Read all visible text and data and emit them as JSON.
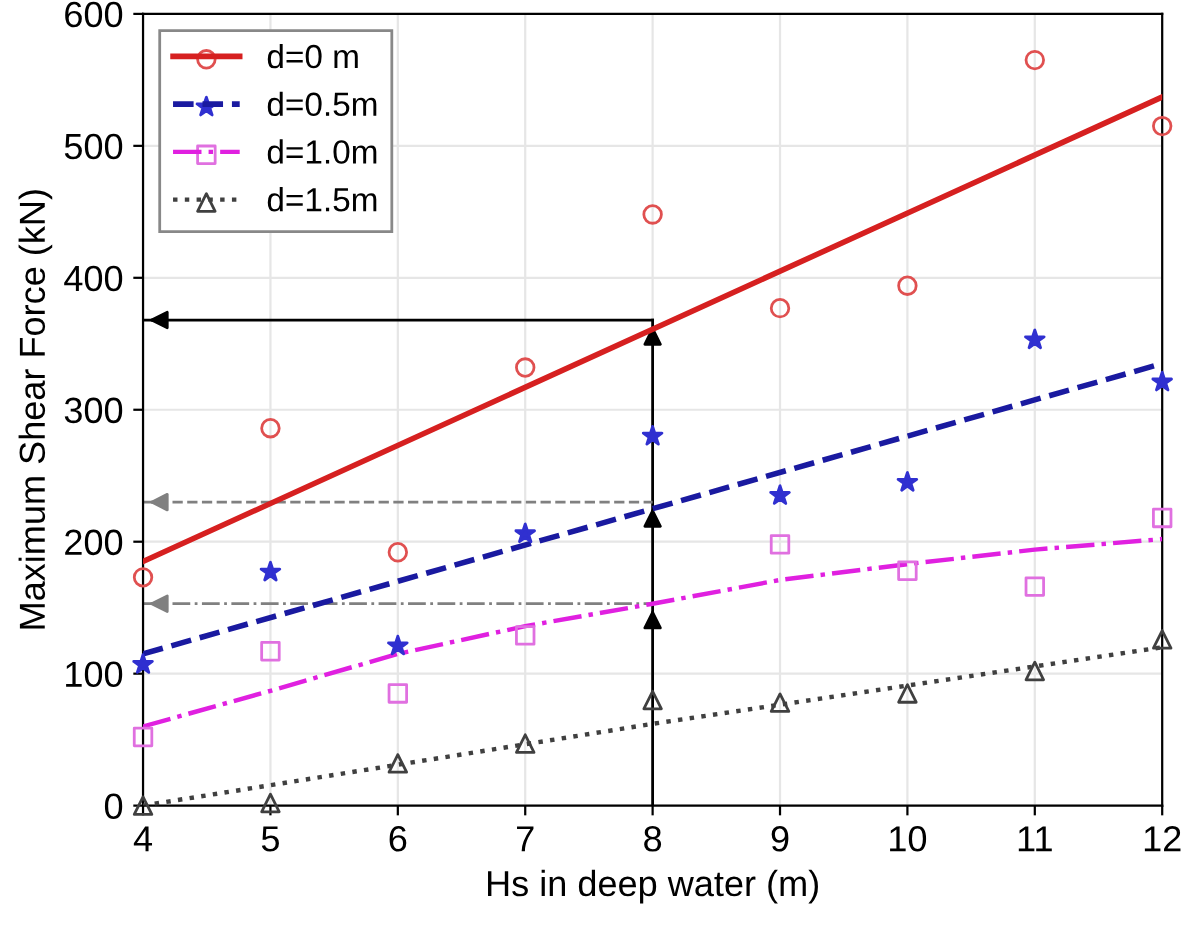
{
  "chart_data": {
    "type": "scatter",
    "xlabel": "Hs in deep water (m)",
    "ylabel": "Maximum Shear Force (kN)",
    "x": [
      4,
      5,
      6,
      7,
      8,
      9,
      10,
      11,
      12
    ],
    "series": [
      {
        "name": "d=0 m",
        "color": "#e05050",
        "marker": "circle",
        "values": [
          173,
          286,
          192,
          332,
          448,
          377,
          394,
          565,
          515
        ]
      },
      {
        "name": "d=0.5m",
        "color": "#3030d0",
        "marker": "star",
        "values": [
          107,
          177,
          121,
          206,
          280,
          235,
          245,
          353,
          321
        ]
      },
      {
        "name": "d=1.0m",
        "color": "#e070e0",
        "marker": "square",
        "values": [
          52,
          117,
          85,
          129,
          null,
          198,
          178,
          166,
          218
        ]
      },
      {
        "name": "d=1.5m",
        "color": "#404040",
        "marker": "triangle",
        "values": [
          0,
          2,
          32,
          47,
          80,
          78,
          85,
          102,
          126
        ]
      },
      {
        "type": "line",
        "color": "#d62020",
        "line_style": "solid",
        "x": [
          4,
          12
        ],
        "values": [
          185,
          537
        ]
      },
      {
        "type": "line",
        "color": "#1a1aa0",
        "line_style": "dashed",
        "x": [
          4,
          12
        ],
        "values": [
          115,
          335
        ]
      },
      {
        "type": "line",
        "color": "#e020e0",
        "line_style": "dashdot",
        "x": [
          4,
          5,
          6,
          7,
          8,
          9,
          10,
          11,
          12
        ],
        "values": [
          60,
          87,
          115,
          136,
          153,
          171,
          183,
          194,
          202
        ]
      },
      {
        "type": "line",
        "color": "#404040",
        "line_style": "dotted",
        "x": [
          4,
          8,
          12
        ],
        "values": [
          0,
          62,
          120
        ]
      }
    ],
    "ref_lines": [
      {
        "axis": "x",
        "value": 8,
        "color": "#000000",
        "line_style": "solid"
      },
      {
        "axis": "y",
        "value": 368,
        "color": "#000000",
        "line_style": "solid"
      },
      {
        "axis": "y",
        "value": 230,
        "color": "#808080",
        "line_style": "dashed"
      },
      {
        "axis": "y",
        "value": 153,
        "color": "#808080",
        "line_style": "dashdot"
      }
    ],
    "xlim": [
      4,
      12
    ],
    "xticks": [
      4,
      5,
      6,
      7,
      8,
      9,
      10,
      11,
      12
    ],
    "ylim": [
      0,
      600
    ],
    "yticks": [
      0,
      100,
      200,
      300,
      400,
      500,
      600
    ],
    "grid": true,
    "legend": "top left"
  }
}
